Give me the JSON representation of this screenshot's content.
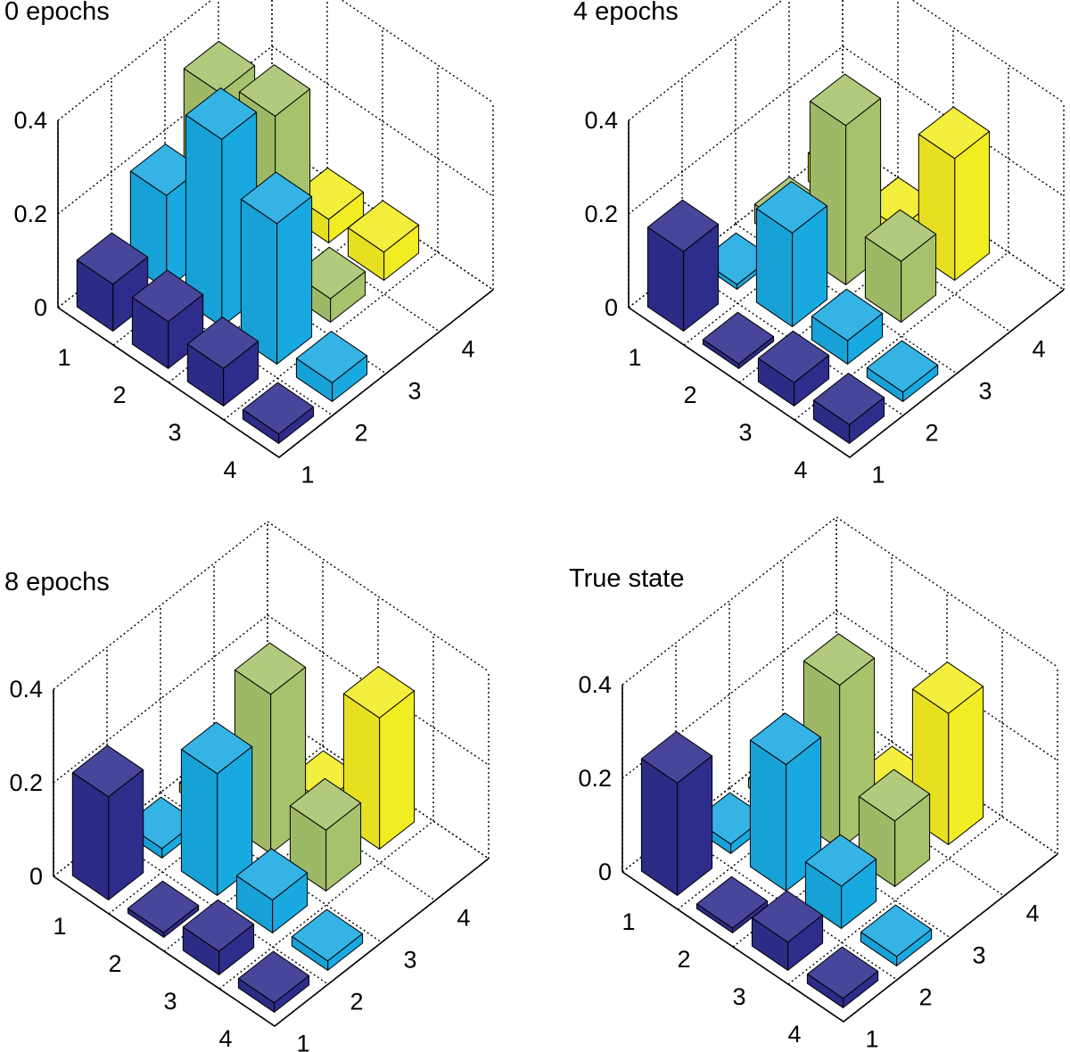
{
  "colors": {
    "col1": "#2e2d8c",
    "col2": "#19a9e1",
    "col3": "#a6c36b",
    "col4": "#f2ec22",
    "background": "#ffffff",
    "grid": "#000000"
  },
  "chart_data": [
    {
      "type": "bar3d",
      "title": "0 epochs",
      "row_categories": [
        "1",
        "2",
        "3",
        "4"
      ],
      "col_categories": [
        "1",
        "2",
        "3",
        "4"
      ],
      "zticks": [
        "0",
        "0.2",
        "0.4"
      ],
      "zlim": [
        0,
        0.4
      ],
      "grid": true,
      "values": [
        [
          0.1,
          0.1,
          0.08,
          0.02
        ],
        [
          0.2,
          0.4,
          0.3,
          0.04
        ],
        [
          0.33,
          0.36,
          0.05,
          0.0
        ],
        [
          0.03,
          0.05,
          0.06,
          0.0
        ]
      ]
    },
    {
      "type": "bar3d",
      "title": "4 epochs",
      "row_categories": [
        "1",
        "2",
        "3",
        "4"
      ],
      "col_categories": [
        "1",
        "2",
        "3",
        "4"
      ],
      "zticks": [
        "0",
        "0.2",
        "0.4"
      ],
      "zlim": [
        0,
        0.4
      ],
      "grid": true,
      "values": [
        [
          0.17,
          0.01,
          0.05,
          0.04
        ],
        [
          0.01,
          0.2,
          0.05,
          0.02
        ],
        [
          0.04,
          0.34,
          0.13,
          0.0
        ],
        [
          0.06,
          0.03,
          0.26,
          0.0
        ]
      ]
    },
    {
      "type": "bar3d",
      "title": "8 epochs",
      "row_categories": [
        "1",
        "2",
        "3",
        "4"
      ],
      "col_categories": [
        "1",
        "2",
        "3",
        "4"
      ],
      "zticks": [
        "0",
        "0.2",
        "0.4"
      ],
      "zlim": [
        0,
        0.4
      ],
      "grid": true,
      "values": [
        [
          0.22,
          0.01,
          0.05,
          0.02
        ],
        [
          0.02,
          0.26,
          0.07,
          0.02
        ],
        [
          0.02,
          0.34,
          0.13,
          0.0
        ],
        [
          0.02,
          0.02,
          0.28,
          0.0
        ]
      ]
    },
    {
      "type": "bar3d",
      "title": "True state",
      "row_categories": [
        "1",
        "2",
        "3",
        "4"
      ],
      "col_categories": [
        "1",
        "2",
        "3",
        "4"
      ],
      "zticks": [
        "0",
        "0.2",
        "0.4"
      ],
      "zlim": [
        0,
        0.4
      ],
      "grid": true,
      "values": [
        [
          0.24,
          0.01,
          0.06,
          0.02
        ],
        [
          0.02,
          0.27,
          0.09,
          0.02
        ],
        [
          0.02,
          0.35,
          0.14,
          0.0
        ],
        [
          0.02,
          0.02,
          0.28,
          0.0
        ]
      ]
    }
  ]
}
